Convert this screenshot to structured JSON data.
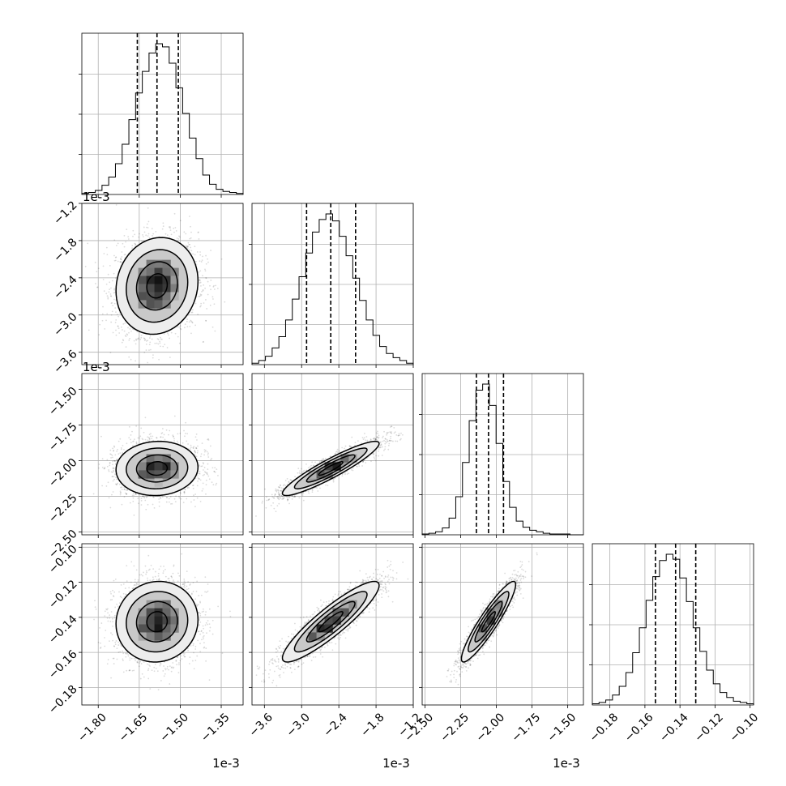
{
  "chart_data": {
    "type": "corner",
    "scale_factor_label": "1e-3",
    "params": [
      {
        "ticks": [
          "−1.80",
          "−1.65",
          "−1.50",
          "−1.35"
        ],
        "tick_values": [
          -1.8,
          -1.65,
          -1.5,
          -1.35
        ],
        "range": [
          -1.86,
          -1.27
        ],
        "median": -1.585,
        "q16": -1.657,
        "q84": -1.507,
        "sigma": 0.075,
        "hist_counts": [
          1,
          2,
          4,
          9,
          17,
          30,
          49,
          73,
          99,
          120,
          138,
          147,
          144,
          128,
          104,
          79,
          55,
          35,
          19,
          10,
          5,
          3,
          2,
          1
        ],
        "y_ticks": [
          "−1.2",
          "−1.8",
          "−2.4",
          "−3.0",
          "−3.6"
        ]
      },
      {
        "ticks": [
          "−3.6",
          "−3.0",
          "−2.4",
          "−1.8",
          "−1.2"
        ],
        "tick_values": [
          -3.6,
          -3.0,
          -2.4,
          -1.8,
          -1.2
        ],
        "range": [
          -3.8,
          -1.2
        ],
        "median": -2.53,
        "q16": -2.92,
        "q84": -2.13,
        "sigma": 0.39,
        "hist_counts": [
          1,
          3,
          6,
          12,
          20,
          32,
          47,
          63,
          80,
          95,
          104,
          108,
          103,
          92,
          78,
          62,
          46,
          32,
          21,
          13,
          8,
          5,
          3,
          1
        ],
        "y_ticks": [
          "−1.50",
          "−1.75",
          "−2.00",
          "−2.25",
          "−2.50"
        ]
      },
      {
        "ticks": [
          "−2.50",
          "−2.25",
          "−2.00",
          "−1.75",
          "−1.50"
        ],
        "tick_values": [
          -2.5,
          -2.25,
          -2.0,
          -1.75,
          -1.5
        ],
        "range": [
          -2.52,
          -1.39
        ],
        "median": -2.055,
        "q16": -2.14,
        "q84": -1.95,
        "sigma": 0.095,
        "hist_counts": [
          1,
          2,
          4,
          9,
          22,
          50,
          95,
          150,
          190,
          198,
          170,
          120,
          70,
          36,
          18,
          10,
          6,
          4,
          2,
          1,
          1,
          1,
          0,
          0
        ],
        "y_ticks": [
          "−0.10",
          "−0.12",
          "−0.14",
          "−0.16",
          "−0.18"
        ]
      },
      {
        "ticks": [
          "−0.18",
          "−0.16",
          "−0.14",
          "−0.12",
          "−0.10"
        ],
        "tick_values": [
          -0.18,
          -0.16,
          -0.14,
          -0.12,
          -0.1
        ],
        "range": [
          -0.19,
          -0.098
        ],
        "median": -0.1425,
        "q16": -0.154,
        "q84": -0.131,
        "sigma": 0.0115,
        "hist_counts": [
          1,
          2,
          4,
          8,
          15,
          26,
          42,
          62,
          84,
          103,
          116,
          121,
          117,
          102,
          83,
          62,
          43,
          28,
          17,
          10,
          6,
          3,
          2,
          1
        ],
        "y_ticks": []
      }
    ],
    "correlations": {
      "1-0": 0.1,
      "2-0": 0.05,
      "2-1": 0.92,
      "3-0": 0.05,
      "3-1": 0.9,
      "3-2": 0.92
    },
    "contour_levels": [
      0.5,
      1.0,
      1.5,
      2.0
    ],
    "grid": true,
    "legend": "none"
  }
}
